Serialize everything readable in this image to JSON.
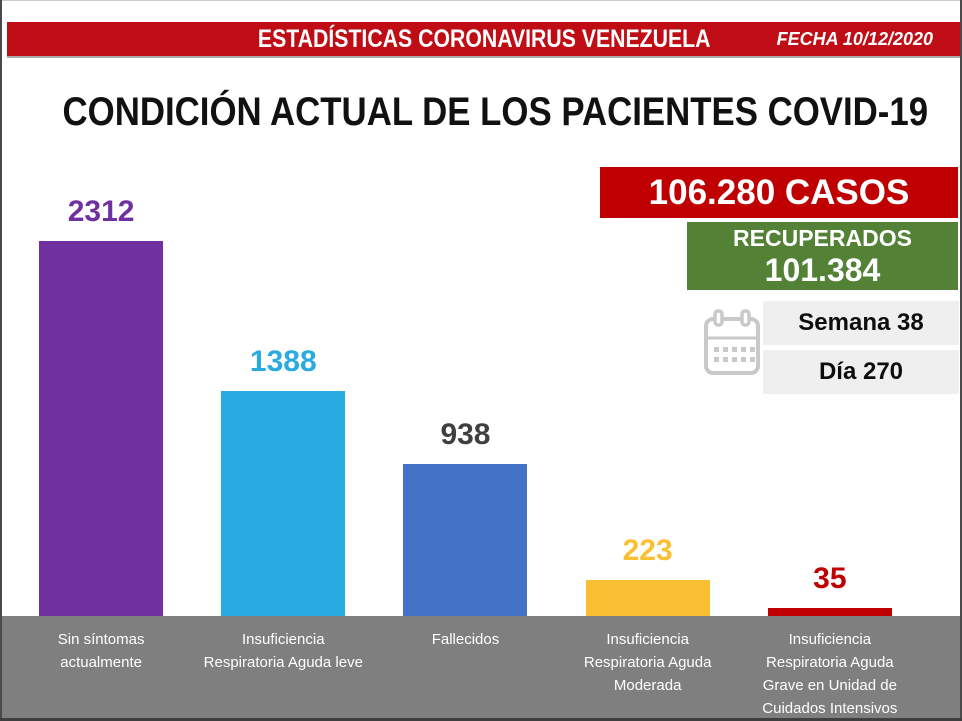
{
  "banner": {
    "title": "ESTADÍSTICAS CORONAVIRUS VENEZUELA",
    "date": "FECHA 10/12/2020",
    "bg_color": "#C00D15",
    "text_color": "#FFFFFF"
  },
  "title": "CONDICIÓN ACTUAL DE LOS PACIENTES COVID-19",
  "summary": {
    "total_cases": "106.280 CASOS",
    "total_cases_bg": "#C00000",
    "recovered_label": "RECUPERADOS",
    "recovered_value": "101.384",
    "recovered_bg": "#538135",
    "week": "Semana 38",
    "day": "Día 270",
    "week_day_bg": "#EFEFEF",
    "calendar_icon": "calendar-icon",
    "calendar_icon_color": "#C9C9C9"
  },
  "chart_data": {
    "type": "bar",
    "title": "CONDICIÓN ACTUAL DE LOS PACIENTES COVID-19",
    "categories": [
      "Sin síntomas actualmente",
      "Insuficiencia Respiratoria Aguda leve",
      "Fallecidos",
      "Insuficiencia Respiratoria Aguda Moderada",
      "Insuficiencia Respiratoria Aguda Grave en Unidad de Cuidados Intensivos"
    ],
    "category_lines": [
      "Sin síntomas\nactualmente",
      "Insuficiencia\nRespiratoria Aguda leve",
      "Fallecidos",
      "Insuficiencia\nRespiratoria Aguda\nModerada",
      "Insuficiencia\nRespiratoria Aguda\nGrave en Unidad de\nCuidados Intensivos"
    ],
    "values": [
      2312,
      1388,
      938,
      223,
      35
    ],
    "bar_colors": [
      "#7030A0",
      "#29ABE2",
      "#4472C4",
      "#FBBF33",
      "#C00000"
    ],
    "value_label_colors": [
      "#7030A0",
      "#29ABE2",
      "#3F3F3F",
      "#FBBF33",
      "#C00000"
    ],
    "ylim": [
      0,
      2400
    ],
    "grid": false,
    "legend": false,
    "value_labels": true,
    "category_band_color": "#7F7F7F"
  }
}
